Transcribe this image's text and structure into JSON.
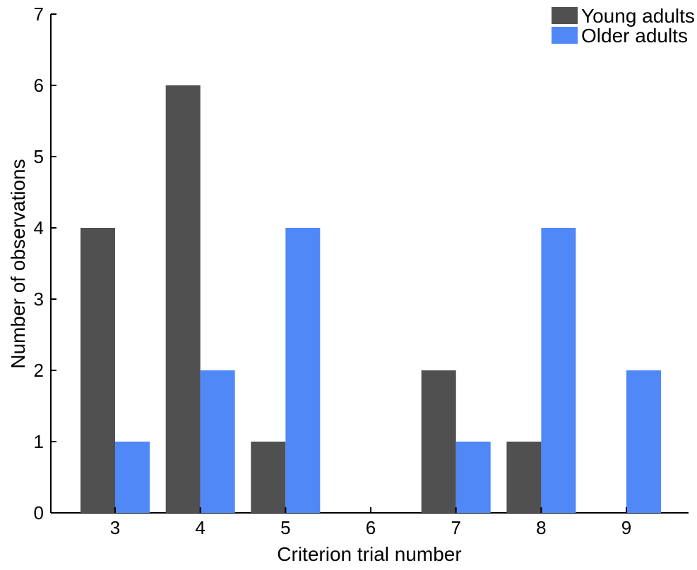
{
  "chart_data": {
    "type": "bar",
    "title": "",
    "xlabel": "Criterion trial number",
    "ylabel": "Number of observations",
    "categories": [
      "3",
      "4",
      "5",
      "6",
      "7",
      "8",
      "9"
    ],
    "series": [
      {
        "name": "Young adults",
        "color": "#505050",
        "values": [
          4,
          6,
          1,
          0,
          2,
          1,
          0
        ]
      },
      {
        "name": "Older adults",
        "color": "#5088F8",
        "values": [
          1,
          2,
          4,
          0,
          1,
          4,
          2
        ]
      }
    ],
    "ylim": [
      0,
      7
    ],
    "yticks": [
      "0",
      "1",
      "2",
      "3",
      "4",
      "5",
      "6",
      "7"
    ],
    "grid": false,
    "legend_position": "top-right"
  }
}
